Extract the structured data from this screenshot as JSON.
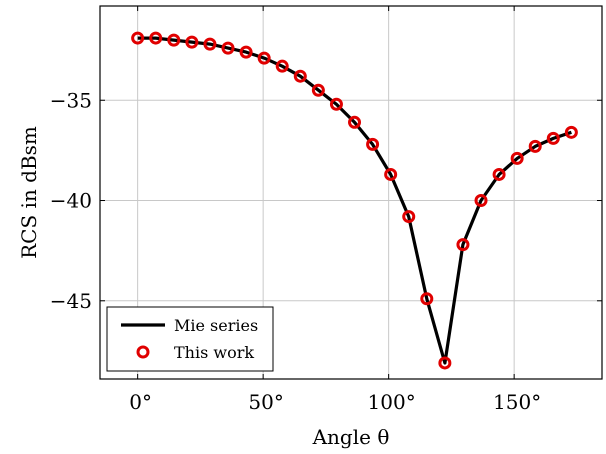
{
  "chart_data": {
    "type": "line",
    "xlabel": "Angle θ",
    "ylabel": "RCS in dBsm",
    "xlim": [
      -15,
      185
    ],
    "ylim": [
      -48.9,
      -30.3
    ],
    "x_ticks": [
      0,
      50,
      100,
      150
    ],
    "x_tick_labels": [
      "0°",
      "50°",
      "100°",
      "150°"
    ],
    "y_ticks": [
      -35,
      -40,
      -45
    ],
    "y_tick_labels": [
      "−35",
      "−40",
      "−45"
    ],
    "grid": true,
    "legend_position": "bottom-left",
    "series": [
      {
        "name": "Mie series",
        "style": "line",
        "color": "#000000",
        "x": [
          0,
          7.2,
          14.4,
          21.6,
          28.8,
          36,
          43.2,
          50.4,
          57.6,
          64.8,
          72,
          79.2,
          86.4,
          93.6,
          100.8,
          108,
          115.2,
          122.4,
          129.6,
          136.8,
          144,
          151.2,
          158.4,
          165.6,
          172.8
        ],
        "y": [
          -31.9,
          -31.9,
          -32.0,
          -32.1,
          -32.2,
          -32.4,
          -32.6,
          -32.9,
          -33.3,
          -33.8,
          -34.5,
          -35.2,
          -36.1,
          -37.2,
          -38.7,
          -40.8,
          -44.9,
          -48.1,
          -42.2,
          -40.0,
          -38.7,
          -37.9,
          -37.3,
          -36.9,
          -36.6
        ]
      },
      {
        "name": "This work",
        "style": "marker",
        "color": "#e00000",
        "x": [
          0,
          7.2,
          14.4,
          21.6,
          28.8,
          36,
          43.2,
          50.4,
          57.6,
          64.8,
          72,
          79.2,
          86.4,
          93.6,
          100.8,
          108,
          115.2,
          122.4,
          129.6,
          136.8,
          144,
          151.2,
          158.4,
          165.6,
          172.8
        ],
        "y": [
          -31.9,
          -31.9,
          -32.0,
          -32.1,
          -32.2,
          -32.4,
          -32.6,
          -32.9,
          -33.3,
          -33.8,
          -34.5,
          -35.2,
          -36.1,
          -37.2,
          -38.7,
          -40.8,
          -44.9,
          -48.1,
          -42.2,
          -40.0,
          -38.7,
          -37.9,
          -37.3,
          -36.9,
          -36.6
        ]
      }
    ]
  }
}
